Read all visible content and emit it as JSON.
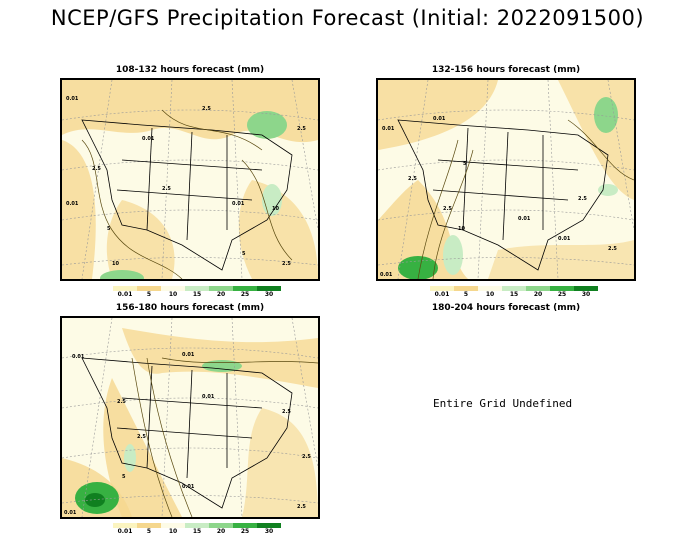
{
  "title": "NCEP/GFS Precipitation Forecast (Initial: 2022091500)",
  "panels": [
    {
      "title": "108-132 hours forecast (mm)",
      "labels": [
        "0.01",
        "2.5",
        "0.01",
        "2.5",
        "5",
        "10",
        "0.01",
        "2.5",
        "2.5",
        "10",
        "0.01",
        "2.5",
        "5"
      ]
    },
    {
      "title": "132-156 hours forecast (mm)",
      "labels": [
        "0.01",
        "2.5",
        "0.01",
        "2.5",
        "5",
        "10",
        "0.01",
        "2.5",
        "0.01",
        "2.5",
        "0.01"
      ]
    },
    {
      "title": "156-180 hours forecast (mm)",
      "labels": [
        "0.01",
        "2.5",
        "0.01",
        "2.5",
        "0.01",
        "2.5",
        "5",
        "2.5",
        "0.01",
        "2.5",
        "0.01"
      ]
    },
    {
      "title": "180-204 hours forecast (mm)",
      "message": "Entire Grid Undefined"
    }
  ],
  "legend": {
    "labels": [
      "0.01",
      "5",
      "10",
      "15",
      "20",
      "25",
      "30"
    ],
    "colors": [
      "#fbf4c0",
      "#f5d78e",
      "#fdfbe6",
      "#c8ecc4",
      "#8dd68b",
      "#37b142",
      "#108020"
    ]
  }
}
